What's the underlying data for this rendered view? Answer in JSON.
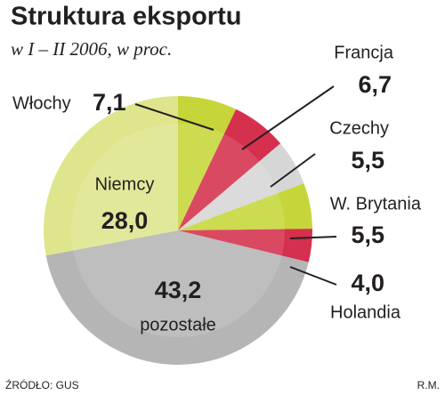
{
  "title": "Struktura eksportu",
  "subtitle": "w I – II 2006, w proc.",
  "source": "ŹRÓDŁO: GUS",
  "credit": "R.M.",
  "chart_data": {
    "type": "pie",
    "categories": [
      "Włochy",
      "Francja",
      "Czechy",
      "W. Brytania",
      "Holandia",
      "pozostałe",
      "Niemcy"
    ],
    "values": [
      7.1,
      6.7,
      5.5,
      5.5,
      4.0,
      43.2,
      28.0
    ],
    "value_labels": [
      "7,1",
      "6,7",
      "5,5",
      "5,5",
      "4,0",
      "43,2",
      "28,0"
    ],
    "colors": [
      "#c6d63a",
      "#d5304d",
      "#d6d6d6",
      "#c6d63a",
      "#d5304d",
      "#b5b5b5",
      "#dfe58c"
    ]
  }
}
